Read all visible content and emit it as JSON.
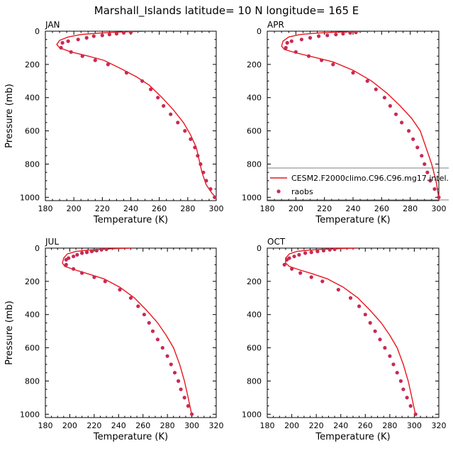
{
  "title": "Marshall_Islands  latitude= 10 N longitude= 165 E",
  "colors": {
    "model": "#e8161c",
    "obs": "#c82a55",
    "axis": "#000000"
  },
  "chart_data": [
    {
      "type": "line",
      "panel_label": "JAN",
      "xlabel": "Temperature (K)",
      "ylabel": "Pressure (mb)",
      "xlim": [
        180,
        300
      ],
      "ylim": [
        1020,
        0
      ],
      "xticks": [
        180,
        200,
        220,
        240,
        260,
        280,
        300
      ],
      "yticks": [
        0,
        200,
        400,
        600,
        800,
        1000
      ],
      "series": [
        {
          "name": "CESM2.F2000climo.C96.C96.mg17.intel.",
          "kind": "line",
          "x": [
            251,
            240,
            228,
            217,
            205,
            196,
            190,
            188,
            190,
            198,
            210,
            221,
            233,
            244,
            253,
            262,
            270,
            277,
            282,
            286,
            288,
            290,
            293,
            297,
            300
          ],
          "y": [
            0,
            3,
            7,
            12,
            20,
            35,
            55,
            80,
            100,
            125,
            150,
            175,
            225,
            275,
            325,
            400,
            475,
            550,
            625,
            700,
            775,
            850,
            925,
            975,
            1005
          ]
        },
        {
          "name": "raobs",
          "kind": "scatter",
          "x": [
            240,
            235,
            230,
            225,
            220,
            214,
            209,
            203,
            196,
            192,
            191,
            198,
            206,
            215,
            224,
            237,
            248,
            254,
            259,
            263,
            268,
            273,
            278,
            282,
            285,
            287,
            289,
            291,
            293,
            296,
            299
          ],
          "y": [
            7,
            10,
            15,
            20,
            25,
            30,
            40,
            50,
            60,
            70,
            100,
            125,
            150,
            175,
            200,
            250,
            300,
            350,
            400,
            450,
            500,
            550,
            600,
            650,
            700,
            750,
            800,
            850,
            900,
            950,
            1000
          ]
        }
      ]
    },
    {
      "type": "line",
      "panel_label": "APR",
      "xlabel": "Temperature (K)",
      "ylabel": "Pressure (mb)",
      "xlim": [
        180,
        300
      ],
      "ylim": [
        1020,
        0
      ],
      "xticks": [
        180,
        200,
        220,
        240,
        260,
        280,
        300
      ],
      "yticks": [
        0,
        200,
        400,
        600,
        800,
        1000
      ],
      "legend": {
        "position": "bottom-right",
        "entries": [
          "CESM2.F2000climo.C96.C96.mg17.intel.",
          "raobs"
        ]
      },
      "series": [
        {
          "name": "CESM2.F2000climo.C96.C96.mg17.intel.",
          "kind": "line",
          "x": [
            253,
            240,
            226,
            214,
            203,
            195,
            191,
            190,
            192,
            200,
            212,
            226,
            240,
            253,
            264,
            273,
            281,
            287,
            291,
            295,
            298,
            300
          ],
          "y": [
            0,
            3,
            7,
            12,
            20,
            35,
            60,
            90,
            110,
            130,
            155,
            185,
            235,
            300,
            375,
            450,
            525,
            600,
            700,
            800,
            900,
            1005
          ]
        },
        {
          "name": "raobs",
          "kind": "scatter",
          "x": [
            242,
            238,
            233,
            228,
            222,
            216,
            210,
            204,
            197,
            194,
            193,
            200,
            209,
            218,
            226,
            240,
            250,
            256,
            262,
            266,
            270,
            274,
            279,
            282,
            285,
            288,
            290,
            292,
            294,
            297,
            300
          ],
          "y": [
            7,
            10,
            15,
            20,
            25,
            30,
            40,
            50,
            60,
            70,
            100,
            125,
            150,
            175,
            200,
            250,
            300,
            350,
            400,
            450,
            500,
            550,
            600,
            650,
            700,
            750,
            800,
            850,
            900,
            950,
            1000
          ]
        }
      ]
    },
    {
      "type": "line",
      "panel_label": "JUL",
      "xlabel": "Temperature (K)",
      "ylabel": "Pressure (mb)",
      "xlim": [
        180,
        320
      ],
      "ylim": [
        1020,
        0
      ],
      "xticks": [
        180,
        200,
        220,
        240,
        260,
        280,
        300,
        320
      ],
      "yticks": [
        0,
        200,
        400,
        600,
        800,
        1000
      ],
      "series": [
        {
          "name": "CESM2.F2000climo.C96.C96.mg17.intel.",
          "kind": "line",
          "x": [
            251,
            238,
            226,
            215,
            205,
            198,
            195,
            194,
            196,
            204,
            215,
            228,
            241,
            253,
            263,
            272,
            279,
            285,
            290,
            294,
            297,
            300
          ],
          "y": [
            0,
            3,
            7,
            12,
            20,
            35,
            60,
            90,
            110,
            130,
            155,
            185,
            235,
            300,
            375,
            450,
            525,
            600,
            700,
            800,
            900,
            1005
          ]
        },
        {
          "name": "raobs",
          "kind": "scatter",
          "x": [
            230,
            226,
            222,
            218,
            214,
            210,
            206,
            203,
            199,
            197,
            197,
            203,
            210,
            220,
            229,
            241,
            250,
            256,
            261,
            265,
            268,
            272,
            276,
            280,
            283,
            286,
            289,
            291,
            294,
            297,
            300
          ],
          "y": [
            7,
            10,
            15,
            20,
            25,
            30,
            40,
            50,
            60,
            70,
            100,
            125,
            150,
            175,
            200,
            250,
            300,
            350,
            400,
            450,
            500,
            550,
            600,
            650,
            700,
            750,
            800,
            850,
            900,
            950,
            1000
          ]
        }
      ]
    },
    {
      "type": "line",
      "panel_label": "OCT",
      "xlabel": "Temperature (K)",
      "ylabel": "Pressure (mb)",
      "xlim": [
        180,
        320
      ],
      "ylim": [
        1020,
        0
      ],
      "xticks": [
        180,
        200,
        220,
        240,
        260,
        280,
        300,
        320
      ],
      "yticks": [
        0,
        200,
        400,
        600,
        800,
        1000
      ],
      "series": [
        {
          "name": "CESM2.F2000climo.C96.C96.mg17.intel.",
          "kind": "line",
          "x": [
            253,
            240,
            226,
            214,
            204,
            198,
            195,
            195,
            198,
            206,
            217,
            229,
            242,
            254,
            264,
            273,
            280,
            286,
            291,
            295,
            298,
            301
          ],
          "y": [
            0,
            3,
            7,
            12,
            20,
            35,
            60,
            90,
            110,
            130,
            155,
            185,
            235,
            300,
            375,
            450,
            525,
            600,
            700,
            800,
            900,
            1005
          ]
        },
        {
          "name": "raobs",
          "kind": "scatter",
          "x": [
            235,
            231,
            226,
            221,
            216,
            211,
            206,
            202,
            198,
            196,
            194,
            200,
            207,
            216,
            225,
            238,
            248,
            255,
            260,
            264,
            268,
            272,
            276,
            280,
            283,
            286,
            289,
            291,
            294,
            297,
            301
          ],
          "y": [
            7,
            10,
            15,
            20,
            25,
            30,
            40,
            50,
            60,
            70,
            100,
            125,
            150,
            175,
            200,
            250,
            300,
            350,
            400,
            450,
            500,
            550,
            600,
            650,
            700,
            750,
            800,
            850,
            900,
            950,
            1000
          ]
        }
      ]
    }
  ]
}
